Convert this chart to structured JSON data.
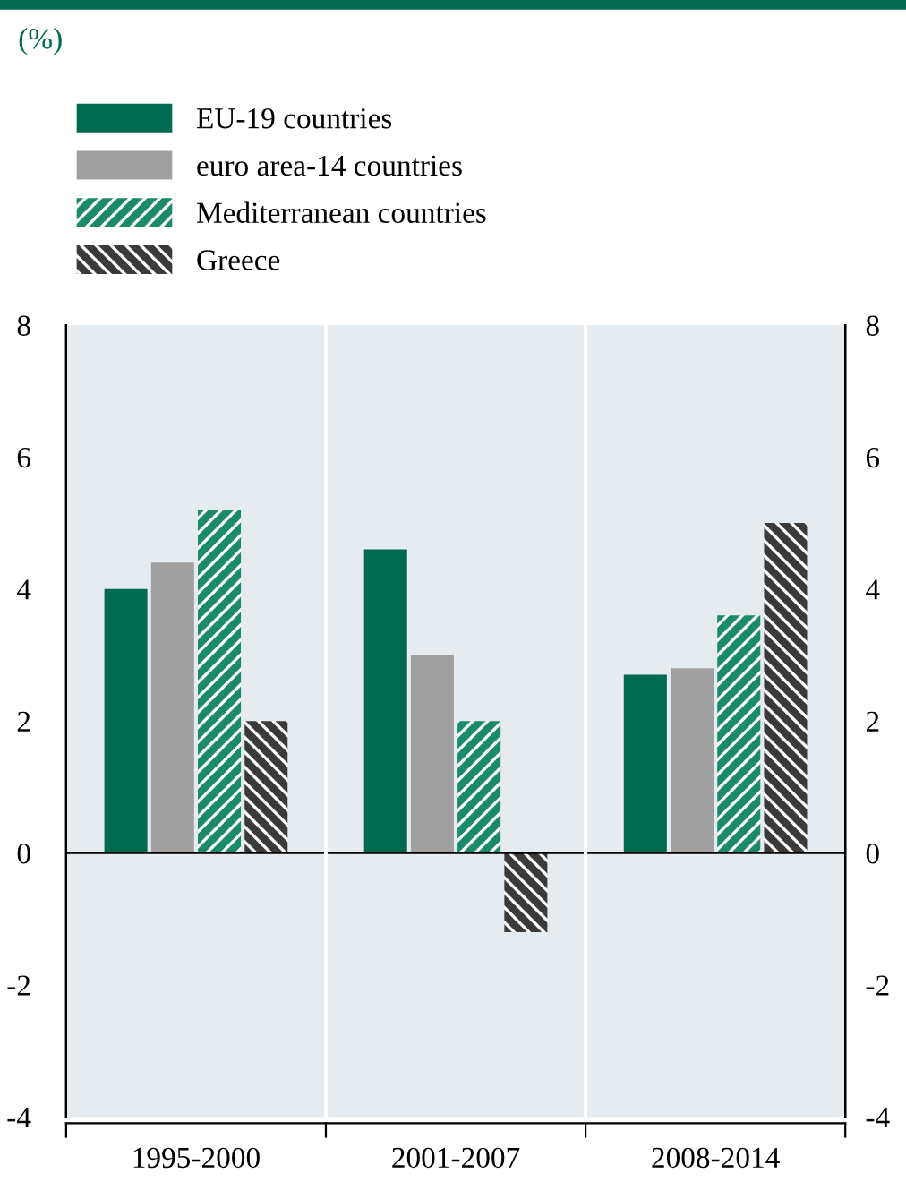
{
  "chart_data": {
    "type": "bar",
    "annotations": [
      "(%)"
    ],
    "categories": [
      "1995-2000",
      "2001-2007",
      "2008-2014"
    ],
    "series": [
      {
        "name": "EU-19 countries",
        "color": "#006a4e",
        "values": [
          4.0,
          4.6,
          2.7
        ]
      },
      {
        "name": "euro area-14 countries",
        "color": "#a0a0a0",
        "values": [
          4.4,
          3.0,
          2.8
        ]
      },
      {
        "name": "Mediterranean countries",
        "color": "#1a8a6a",
        "values": [
          5.2,
          2.0,
          3.6
        ]
      },
      {
        "name": "Greece",
        "color": "#3a3a3a",
        "values": [
          2.0,
          -1.2,
          5.0
        ]
      }
    ],
    "ylim": [
      -4,
      8
    ],
    "yticks": [
      -4,
      -2,
      0,
      2,
      4,
      6,
      8
    ],
    "y2lim": [
      -4,
      8
    ],
    "y2ticks": [
      -4,
      -2,
      0,
      2,
      4,
      6,
      8
    ],
    "legend": "top left",
    "grid": false
  }
}
